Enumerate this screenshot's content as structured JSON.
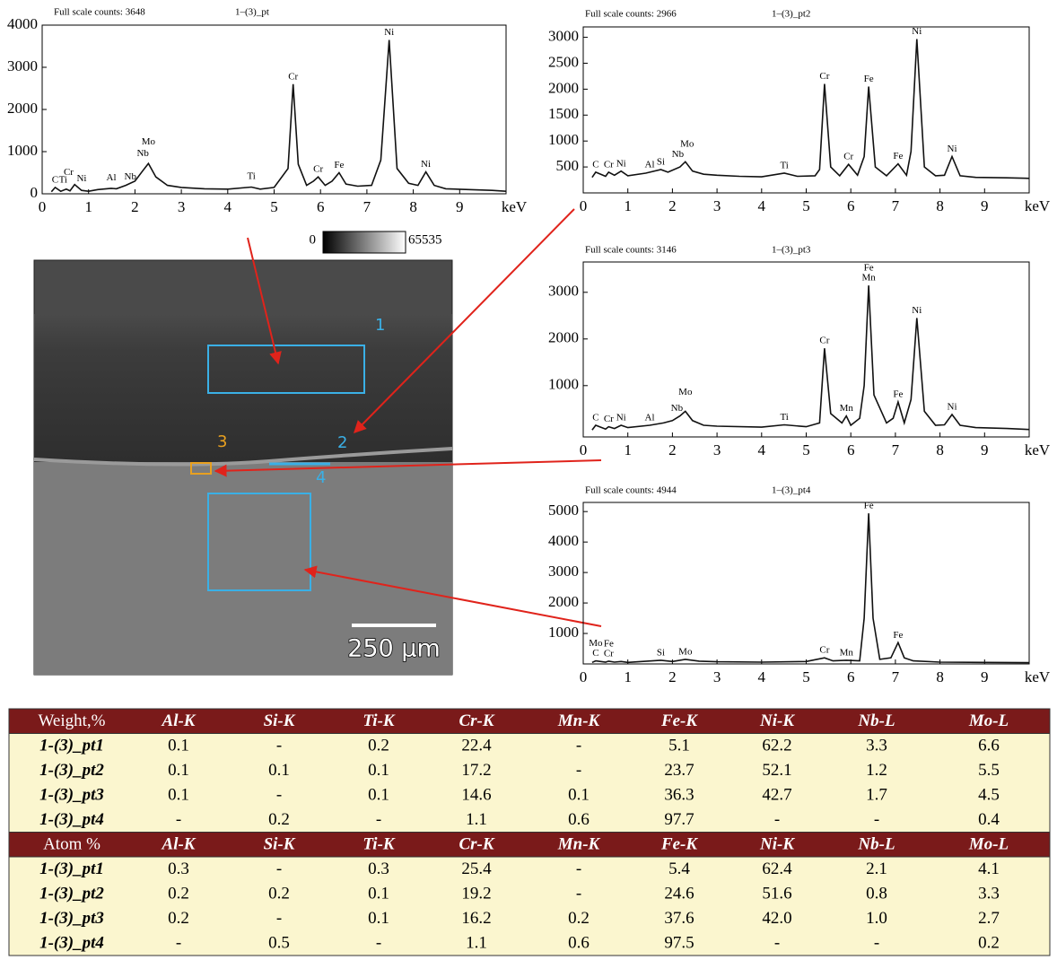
{
  "chart_data": [
    {
      "type": "line",
      "header": "Full scale counts: 3648",
      "title": "1–(3)_pt",
      "x_label": "keV",
      "xlim": [
        0,
        10
      ],
      "xticks": [
        0,
        1,
        2,
        3,
        4,
        5,
        6,
        7,
        8,
        9
      ],
      "ylim": [
        0,
        4000
      ],
      "yticks": [
        0,
        1000,
        2000,
        3000,
        4000
      ],
      "x": [
        0.2,
        0.28,
        0.4,
        0.52,
        0.6,
        0.7,
        0.85,
        1.0,
        1.2,
        1.49,
        1.6,
        1.8,
        2.0,
        2.17,
        2.29,
        2.45,
        2.7,
        3.0,
        3.5,
        4.0,
        4.51,
        4.7,
        5.0,
        5.3,
        5.41,
        5.52,
        5.7,
        5.85,
        5.95,
        6.1,
        6.25,
        6.4,
        6.55,
        6.8,
        7.1,
        7.3,
        7.48,
        7.65,
        7.9,
        8.1,
        8.27,
        8.45,
        8.7,
        9.2,
        9.7,
        10.0
      ],
      "series": [
        {
          "color": "#111111",
          "values": [
            50,
            150,
            60,
            110,
            70,
            220,
            80,
            60,
            100,
            130,
            120,
            200,
            300,
            550,
            720,
            400,
            200,
            150,
            120,
            110,
            160,
            110,
            150,
            600,
            2600,
            700,
            200,
            300,
            400,
            200,
            300,
            500,
            230,
            180,
            200,
            800,
            3648,
            600,
            250,
            200,
            520,
            200,
            120,
            100,
            80,
            60
          ]
        }
      ],
      "peaks": [
        {
          "label": "C",
          "x": 0.28,
          "y": 150
        },
        {
          "label": "Ti",
          "x": 0.45,
          "y": 150
        },
        {
          "label": "Cr",
          "x": 0.57,
          "y": 330
        },
        {
          "label": "Ni",
          "x": 0.85,
          "y": 180
        },
        {
          "label": "Al",
          "x": 1.49,
          "y": 200
        },
        {
          "label": "Nb",
          "x": 1.9,
          "y": 220
        },
        {
          "label": "Nb",
          "x": 2.17,
          "y": 780
        },
        {
          "label": "Mo",
          "x": 2.29,
          "y": 1050
        },
        {
          "label": "Ti",
          "x": 4.51,
          "y": 240
        },
        {
          "label": "Cr",
          "x": 5.41,
          "y": 2600
        },
        {
          "label": "Cr",
          "x": 5.95,
          "y": 400
        },
        {
          "label": "Fe",
          "x": 6.4,
          "y": 500
        },
        {
          "label": "Ni",
          "x": 7.48,
          "y": 3648
        },
        {
          "label": "Ni",
          "x": 8.27,
          "y": 520
        }
      ]
    },
    {
      "type": "line",
      "header": "Full scale counts: 2966",
      "title": "1–(3)_pt2",
      "x_label": "keV",
      "xlim": [
        0,
        10
      ],
      "xticks": [
        0,
        1,
        2,
        3,
        4,
        5,
        6,
        7,
        8,
        9
      ],
      "ylim": [
        0,
        3200
      ],
      "yticks": [
        500,
        1000,
        1500,
        2000,
        2500,
        3000
      ],
      "x": [
        0.2,
        0.28,
        0.5,
        0.57,
        0.7,
        0.85,
        1.0,
        1.4,
        1.74,
        1.9,
        2.17,
        2.29,
        2.45,
        2.7,
        3.0,
        3.5,
        4.0,
        4.51,
        4.8,
        5.2,
        5.3,
        5.41,
        5.55,
        5.75,
        5.95,
        6.15,
        6.3,
        6.4,
        6.55,
        6.8,
        7.06,
        7.25,
        7.35,
        7.48,
        7.65,
        7.9,
        8.1,
        8.27,
        8.45,
        8.8,
        9.5,
        10.0
      ],
      "series": [
        {
          "color": "#111111",
          "values": [
            300,
            400,
            320,
            400,
            340,
            420,
            330,
            380,
            450,
            400,
            500,
            600,
            420,
            360,
            340,
            320,
            310,
            380,
            320,
            330,
            450,
            2100,
            500,
            330,
            550,
            340,
            700,
            2050,
            500,
            330,
            560,
            340,
            800,
            2966,
            500,
            330,
            340,
            700,
            330,
            300,
            290,
            280
          ]
        }
      ],
      "peaks": [
        {
          "label": "C",
          "x": 0.28,
          "y": 400
        },
        {
          "label": "Cr",
          "x": 0.57,
          "y": 400
        },
        {
          "label": "Ni",
          "x": 0.85,
          "y": 420
        },
        {
          "label": "Al",
          "x": 1.49,
          "y": 400
        },
        {
          "label": "Si",
          "x": 1.74,
          "y": 450
        },
        {
          "label": "Nb",
          "x": 2.12,
          "y": 600
        },
        {
          "label": "Mo",
          "x": 2.33,
          "y": 800
        },
        {
          "label": "Ti",
          "x": 4.51,
          "y": 380
        },
        {
          "label": "Cr",
          "x": 5.41,
          "y": 2100
        },
        {
          "label": "Cr",
          "x": 5.95,
          "y": 550
        },
        {
          "label": "Fe",
          "x": 6.4,
          "y": 2050
        },
        {
          "label": "Fe",
          "x": 7.06,
          "y": 560
        },
        {
          "label": "Ni",
          "x": 7.48,
          "y": 2966
        },
        {
          "label": "Ni",
          "x": 8.27,
          "y": 700
        }
      ]
    },
    {
      "type": "line",
      "header": "Full scale counts: 3146",
      "title": "1–(3)_pt3",
      "x_label": "keV",
      "xlim": [
        0,
        10
      ],
      "xticks": [
        0,
        1,
        2,
        3,
        4,
        5,
        6,
        7,
        8,
        9
      ],
      "ylim": [
        -100,
        3650
      ],
      "yticks": [
        1000,
        2000,
        3000
      ],
      "x": [
        0.2,
        0.28,
        0.5,
        0.57,
        0.7,
        0.85,
        1.0,
        1.49,
        1.8,
        2.0,
        2.17,
        2.29,
        2.45,
        2.7,
        3.0,
        4.0,
        4.51,
        5.0,
        5.3,
        5.41,
        5.55,
        5.8,
        5.9,
        6.0,
        6.2,
        6.3,
        6.4,
        6.52,
        6.8,
        6.95,
        7.06,
        7.2,
        7.35,
        7.48,
        7.65,
        7.9,
        8.1,
        8.27,
        8.45,
        8.8,
        9.5,
        10.0
      ],
      "series": [
        {
          "color": "#111111",
          "values": [
            50,
            150,
            70,
            120,
            80,
            150,
            100,
            150,
            200,
            250,
            350,
            450,
            250,
            150,
            130,
            110,
            160,
            120,
            200,
            1800,
            400,
            200,
            350,
            150,
            300,
            1000,
            3146,
            800,
            200,
            300,
            650,
            200,
            700,
            2450,
            450,
            150,
            160,
            380,
            150,
            100,
            80,
            60
          ]
        }
      ],
      "peaks": [
        {
          "label": "C",
          "x": 0.28,
          "y": 150
        },
        {
          "label": "Cr",
          "x": 0.57,
          "y": 120
        },
        {
          "label": "Ni",
          "x": 0.85,
          "y": 150
        },
        {
          "label": "Al",
          "x": 1.49,
          "y": 150
        },
        {
          "label": "Nb",
          "x": 2.1,
          "y": 350
        },
        {
          "label": "Mo",
          "x": 2.29,
          "y": 700
        },
        {
          "label": "Ti",
          "x": 4.51,
          "y": 160
        },
        {
          "label": "Cr",
          "x": 5.41,
          "y": 1800
        },
        {
          "label": "Mn",
          "x": 5.9,
          "y": 350
        },
        {
          "label": "Mn",
          "x": 6.4,
          "y": 3146
        },
        {
          "label": "Fe",
          "x": 6.4,
          "y": 3146
        },
        {
          "label": "Fe",
          "x": 7.06,
          "y": 650
        },
        {
          "label": "Ni",
          "x": 7.48,
          "y": 2450
        },
        {
          "label": "Ni",
          "x": 8.27,
          "y": 380
        }
      ]
    },
    {
      "type": "line",
      "header": "Full scale counts: 4944",
      "title": "1–(3)_pt4",
      "x_label": "keV",
      "xlim": [
        0,
        10
      ],
      "xticks": [
        0,
        1,
        2,
        3,
        4,
        5,
        6,
        7,
        8,
        9
      ],
      "ylim": [
        0,
        5300
      ],
      "yticks": [
        1000,
        2000,
        3000,
        4000,
        5000
      ],
      "x": [
        0.2,
        0.28,
        0.5,
        0.57,
        0.7,
        0.85,
        1.0,
        1.74,
        2.0,
        2.29,
        2.6,
        3.0,
        4.0,
        5.0,
        5.41,
        5.6,
        5.9,
        6.2,
        6.3,
        6.4,
        6.5,
        6.65,
        6.9,
        7.06,
        7.2,
        7.4,
        8.0,
        9.0,
        10.0
      ],
      "series": [
        {
          "color": "#111111",
          "values": [
            50,
            100,
            60,
            90,
            60,
            80,
            50,
            120,
            80,
            150,
            90,
            70,
            60,
            80,
            200,
            100,
            120,
            100,
            1500,
            4944,
            1500,
            150,
            200,
            700,
            200,
            100,
            60,
            50,
            40
          ]
        }
      ],
      "peaks": [
        {
          "label": "C",
          "x": 0.28,
          "y": 100
        },
        {
          "label": "Mo",
          "x": 0.28,
          "y": 100
        },
        {
          "label": "Cr",
          "x": 0.57,
          "y": 90
        },
        {
          "label": "Fe",
          "x": 0.57,
          "y": 90
        },
        {
          "label": "Si",
          "x": 1.74,
          "y": 120
        },
        {
          "label": "Mo",
          "x": 2.29,
          "y": 150
        },
        {
          "label": "Cr",
          "x": 5.41,
          "y": 200
        },
        {
          "label": "Mn",
          "x": 5.9,
          "y": 120
        },
        {
          "label": "Fe",
          "x": 6.4,
          "y": 4944
        },
        {
          "label": "Fe",
          "x": 7.06,
          "y": 700
        }
      ]
    }
  ],
  "image": {
    "colorbar_min": 0,
    "colorbar_max": 65535,
    "scale_bar": "250 μm",
    "regions": [
      "1",
      "2",
      "3",
      "4"
    ]
  },
  "tables": [
    {
      "header": [
        "Weight,%",
        "Al-K",
        "Si-K",
        "Ti-K",
        "Cr-K",
        "Mn-K",
        "Fe-K",
        "Ni-K",
        "Nb-L",
        "Mo-L"
      ],
      "rows": [
        [
          "1-(3)_pt1",
          "0.1",
          "-",
          "0.2",
          "22.4",
          "-",
          "5.1",
          "62.2",
          "3.3",
          "6.6"
        ],
        [
          "1-(3)_pt2",
          "0.1",
          "0.1",
          "0.1",
          "17.2",
          "-",
          "23.7",
          "52.1",
          "1.2",
          "5.5"
        ],
        [
          "1-(3)_pt3",
          "0.1",
          "-",
          "0.1",
          "14.6",
          "0.1",
          "36.3",
          "42.7",
          "1.7",
          "4.5"
        ],
        [
          "1-(3)_pt4",
          "-",
          "0.2",
          "-",
          "1.1",
          "0.6",
          "97.7",
          "-",
          "-",
          "0.4"
        ]
      ]
    },
    {
      "header": [
        "Atom %",
        "Al-K",
        "Si-K",
        "Ti-K",
        "Cr-K",
        "Mn-K",
        "Fe-K",
        "Ni-K",
        "Nb-L",
        "Mo-L"
      ],
      "rows": [
        [
          "1-(3)_pt1",
          "0.3",
          "-",
          "0.3",
          "25.4",
          "-",
          "5.4",
          "62.4",
          "2.1",
          "4.1"
        ],
        [
          "1-(3)_pt2",
          "0.2",
          "0.2",
          "0.1",
          "19.2",
          "-",
          "24.6",
          "51.6",
          "0.8",
          "3.3"
        ],
        [
          "1-(3)_pt3",
          "0.2",
          "-",
          "0.1",
          "16.2",
          "0.2",
          "37.6",
          "42.0",
          "1.0",
          "2.7"
        ],
        [
          "1-(3)_pt4",
          "-",
          "0.5",
          "-",
          "1.1",
          "0.6",
          "97.5",
          "-",
          "-",
          "0.2"
        ]
      ]
    }
  ]
}
